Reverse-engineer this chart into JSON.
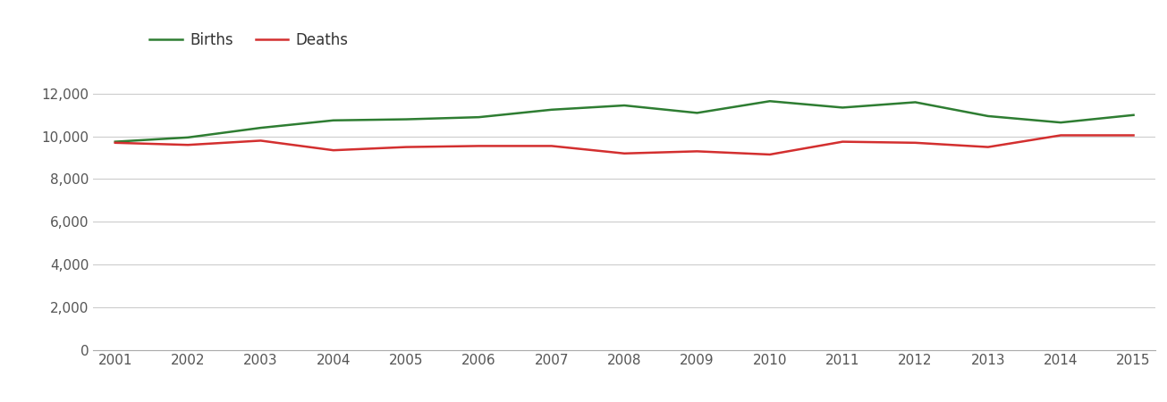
{
  "years": [
    2001,
    2002,
    2003,
    2004,
    2005,
    2006,
    2007,
    2008,
    2009,
    2010,
    2011,
    2012,
    2013,
    2014,
    2015
  ],
  "births": [
    9750,
    9950,
    10400,
    10750,
    10800,
    10900,
    11250,
    11450,
    11100,
    11650,
    11350,
    11600,
    10950,
    10650,
    11000
  ],
  "deaths": [
    9700,
    9600,
    9800,
    9350,
    9500,
    9550,
    9550,
    9200,
    9300,
    9150,
    9750,
    9700,
    9500,
    10050,
    10050
  ],
  "births_color": "#2e7d32",
  "deaths_color": "#d32f2f",
  "line_width": 1.8,
  "ylim": [
    0,
    13000
  ],
  "ytick_values": [
    0,
    2000,
    4000,
    6000,
    8000,
    10000,
    12000
  ],
  "grid_color": "#cccccc",
  "background_color": "#ffffff",
  "legend_births": "Births",
  "legend_deaths": "Deaths",
  "tick_fontsize": 11,
  "tick_color": "#555555"
}
